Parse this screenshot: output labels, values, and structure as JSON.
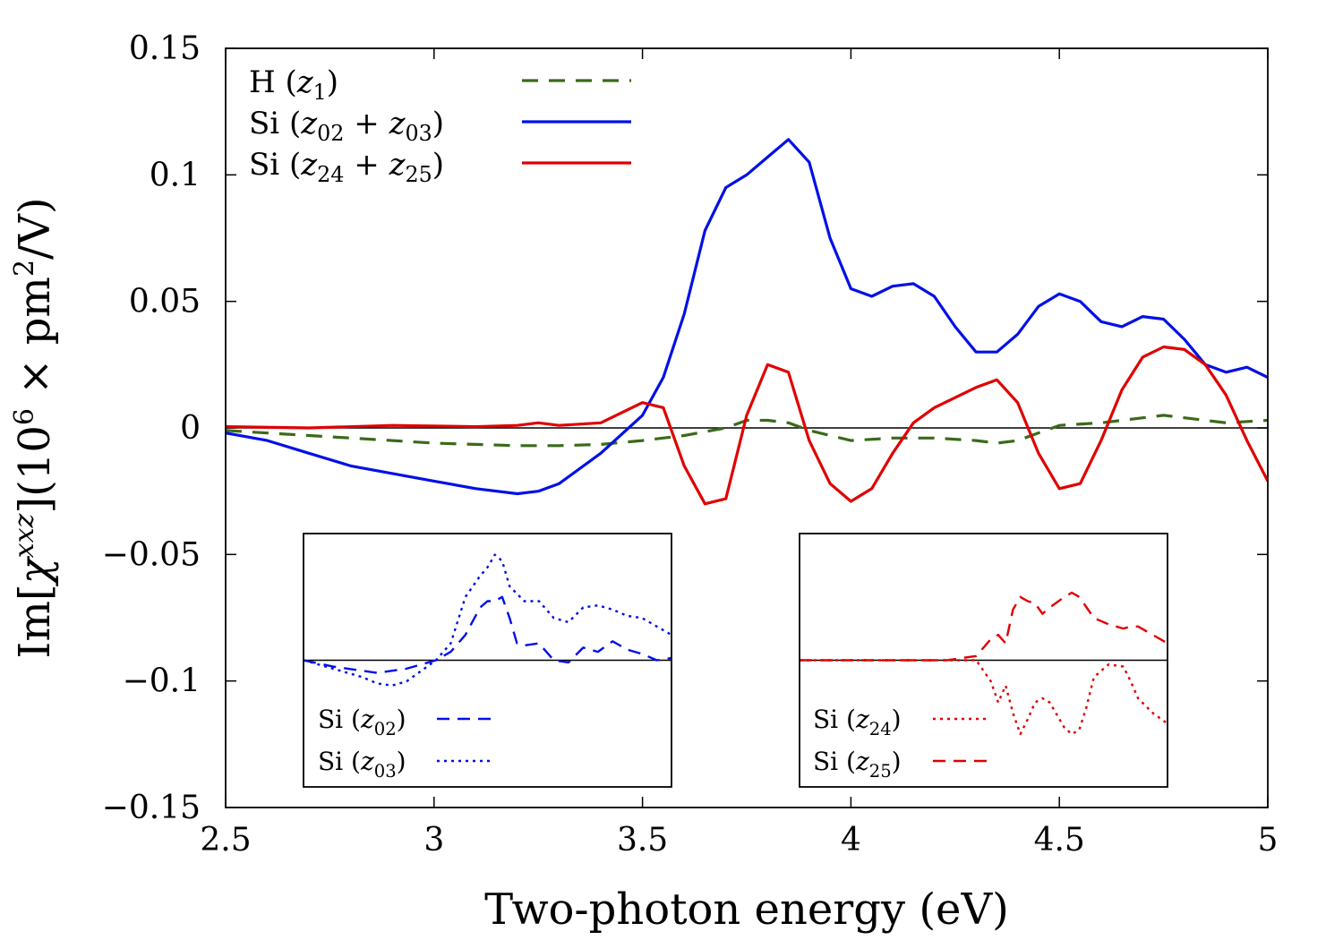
{
  "chart_data": [
    {
      "id": "main",
      "type": "line",
      "xlabel": "Two-photon energy (eV)",
      "ylabel": "Im[χ^xxz](10^6 × pm^2/V)",
      "ylabel_parts": {
        "lead": "Im[",
        "chi": "χ",
        "sup": "xxz",
        "mid": "](10",
        "six": "6",
        "times": " × pm",
        "two": "2",
        "tail": "/V)"
      },
      "xlim": [
        2.5,
        5
      ],
      "ylim": [
        -0.15,
        0.15
      ],
      "xticks": [
        2.5,
        3,
        3.5,
        4,
        4.5,
        5
      ],
      "xtick_labels": [
        "2.5",
        "3",
        "3.5",
        "4",
        "4.5",
        "5"
      ],
      "yticks": [
        -0.15,
        -0.1,
        -0.05,
        0,
        0.05,
        0.1,
        0.15
      ],
      "ytick_labels": [
        "−0.15",
        "−0.1",
        "−0.05",
        "0",
        "0.05",
        "0.1",
        "0.15"
      ],
      "legend_position": "top-left",
      "zero_line": true,
      "series": [
        {
          "key": "h",
          "legend": {
            "prefix": "H (",
            "sym": "z",
            "sub1": "1",
            "suffix": ")"
          },
          "color": "#3a6a1a",
          "style": "dashed",
          "x": [
            2.5,
            2.6,
            2.7,
            2.8,
            2.9,
            3.0,
            3.1,
            3.2,
            3.3,
            3.4,
            3.5,
            3.6,
            3.7,
            3.75,
            3.8,
            3.85,
            3.9,
            4.0,
            4.1,
            4.2,
            4.3,
            4.35,
            4.4,
            4.5,
            4.6,
            4.7,
            4.75,
            4.8,
            4.9,
            5.0
          ],
          "y": [
            -0.001,
            -0.002,
            -0.003,
            -0.004,
            -0.005,
            -0.006,
            -0.0065,
            -0.007,
            -0.007,
            -0.0065,
            -0.005,
            -0.003,
            0.0,
            0.003,
            0.003,
            0.002,
            -0.001,
            -0.005,
            -0.004,
            -0.004,
            -0.005,
            -0.006,
            -0.005,
            0.001,
            0.002,
            0.004,
            0.005,
            0.004,
            0.002,
            0.003
          ]
        },
        {
          "key": "si_sum_low",
          "legend": {
            "prefix": "Si (",
            "sym": "z",
            "sub1": "02",
            "plus": " + ",
            "sym2": "z",
            "sub2": "03",
            "suffix": ")"
          },
          "color": "#0010e6",
          "style": "solid",
          "x": [
            2.5,
            2.6,
            2.7,
            2.8,
            2.9,
            3.0,
            3.1,
            3.2,
            3.25,
            3.3,
            3.4,
            3.5,
            3.55,
            3.6,
            3.65,
            3.7,
            3.75,
            3.8,
            3.85,
            3.9,
            3.95,
            4.0,
            4.05,
            4.1,
            4.15,
            4.2,
            4.25,
            4.3,
            4.35,
            4.4,
            4.45,
            4.5,
            4.55,
            4.6,
            4.65,
            4.7,
            4.75,
            4.8,
            4.85,
            4.9,
            4.95,
            5.0
          ],
          "y": [
            -0.002,
            -0.005,
            -0.01,
            -0.015,
            -0.018,
            -0.021,
            -0.024,
            -0.026,
            -0.025,
            -0.022,
            -0.01,
            0.005,
            0.02,
            0.045,
            0.078,
            0.095,
            0.1,
            0.107,
            0.114,
            0.105,
            0.075,
            0.055,
            0.052,
            0.056,
            0.057,
            0.052,
            0.04,
            0.03,
            0.03,
            0.037,
            0.048,
            0.053,
            0.05,
            0.042,
            0.04,
            0.044,
            0.043,
            0.035,
            0.025,
            0.022,
            0.024,
            0.02
          ]
        },
        {
          "key": "si_sum_deep",
          "legend": {
            "prefix": "Si (",
            "sym": "z",
            "sub1": "24",
            "plus": " + ",
            "sym2": "z",
            "sub2": "25",
            "suffix": ")"
          },
          "color": "#e00000",
          "style": "solid",
          "x": [
            2.5,
            2.7,
            2.9,
            3.1,
            3.2,
            3.25,
            3.3,
            3.4,
            3.5,
            3.55,
            3.6,
            3.65,
            3.7,
            3.75,
            3.8,
            3.85,
            3.9,
            3.95,
            4.0,
            4.05,
            4.1,
            4.15,
            4.2,
            4.3,
            4.35,
            4.4,
            4.45,
            4.5,
            4.55,
            4.6,
            4.65,
            4.7,
            4.75,
            4.8,
            4.85,
            4.9,
            4.95,
            5.0
          ],
          "y": [
            0.0005,
            0.0,
            0.001,
            0.0005,
            0.001,
            0.002,
            0.001,
            0.002,
            0.01,
            0.008,
            -0.015,
            -0.03,
            -0.028,
            0.005,
            0.025,
            0.022,
            -0.005,
            -0.022,
            -0.029,
            -0.024,
            -0.01,
            0.002,
            0.008,
            0.016,
            0.019,
            0.01,
            -0.01,
            -0.024,
            -0.022,
            -0.005,
            0.015,
            0.028,
            0.032,
            0.031,
            0.025,
            0.013,
            -0.005,
            -0.021
          ]
        }
      ]
    },
    {
      "id": "inset_left",
      "type": "line",
      "xlim": [
        2.5,
        5
      ],
      "ylim": [
        -0.06,
        0.06
      ],
      "zero_line": true,
      "legend_position": "bottom-left",
      "series": [
        {
          "key": "si02",
          "legend": {
            "prefix": "Si (",
            "sym": "z",
            "sub1": "02",
            "suffix": ")"
          },
          "color": "#0010e6",
          "style": "dashed",
          "x": [
            2.5,
            2.7,
            2.9,
            3.0,
            3.1,
            3.2,
            3.3,
            3.4,
            3.5,
            3.6,
            3.7,
            3.75,
            3.8,
            3.85,
            3.9,
            3.95,
            4.0,
            4.1,
            4.2,
            4.3,
            4.4,
            4.5,
            4.6,
            4.7,
            4.8,
            4.9,
            5.0
          ],
          "y": [
            0.0,
            -0.003,
            -0.005,
            -0.006,
            -0.005,
            -0.004,
            -0.002,
            0.0,
            0.004,
            0.012,
            0.025,
            0.028,
            0.028,
            0.03,
            0.02,
            0.008,
            0.007,
            0.008,
            0.0,
            -0.001,
            0.006,
            0.004,
            0.009,
            0.005,
            0.003,
            0.0,
            0.001
          ]
        },
        {
          "key": "si03",
          "legend": {
            "prefix": "Si (",
            "sym": "z",
            "sub1": "03",
            "suffix": ")"
          },
          "color": "#0010e6",
          "style": "dotted",
          "x": [
            2.5,
            2.7,
            2.9,
            3.0,
            3.1,
            3.2,
            3.3,
            3.4,
            3.5,
            3.6,
            3.7,
            3.75,
            3.8,
            3.85,
            3.9,
            4.0,
            4.1,
            4.2,
            4.3,
            4.4,
            4.5,
            4.6,
            4.7,
            4.8,
            4.9,
            5.0
          ],
          "y": [
            0.0,
            -0.004,
            -0.008,
            -0.011,
            -0.012,
            -0.01,
            -0.005,
            0.0,
            0.008,
            0.03,
            0.04,
            0.044,
            0.05,
            0.047,
            0.035,
            0.028,
            0.028,
            0.02,
            0.018,
            0.025,
            0.026,
            0.024,
            0.021,
            0.02,
            0.016,
            0.012
          ]
        }
      ]
    },
    {
      "id": "inset_right",
      "type": "line",
      "xlim": [
        2.5,
        5
      ],
      "ylim": [
        -0.06,
        0.06
      ],
      "zero_line": true,
      "legend_position": "bottom-left",
      "series": [
        {
          "key": "si24",
          "legend": {
            "prefix": "Si (",
            "sym": "z",
            "sub1": "24",
            "suffix": ")"
          },
          "color": "#e00000",
          "style": "dotted",
          "x": [
            2.5,
            3.0,
            3.5,
            3.7,
            3.8,
            3.85,
            3.9,
            3.95,
            4.0,
            4.05,
            4.1,
            4.15,
            4.2,
            4.3,
            4.35,
            4.4,
            4.45,
            4.5,
            4.6,
            4.7,
            4.75,
            4.8,
            4.9,
            5.0
          ],
          "y": [
            0.0,
            0.0,
            0.0,
            0.0,
            -0.01,
            -0.02,
            -0.012,
            -0.025,
            -0.035,
            -0.028,
            -0.02,
            -0.018,
            -0.02,
            -0.032,
            -0.035,
            -0.033,
            -0.022,
            -0.008,
            -0.002,
            -0.003,
            -0.01,
            -0.018,
            -0.025,
            -0.03
          ]
        },
        {
          "key": "si25",
          "legend": {
            "prefix": "Si (",
            "sym": "z",
            "sub1": "25",
            "suffix": ")"
          },
          "color": "#e00000",
          "style": "dashed",
          "x": [
            2.5,
            3.0,
            3.5,
            3.7,
            3.8,
            3.85,
            3.9,
            3.95,
            4.0,
            4.05,
            4.1,
            4.15,
            4.2,
            4.3,
            4.35,
            4.4,
            4.45,
            4.5,
            4.6,
            4.7,
            4.75,
            4.8,
            4.9,
            5.0
          ],
          "y": [
            0.0,
            0.0,
            0.0,
            0.002,
            0.01,
            0.012,
            0.008,
            0.024,
            0.03,
            0.028,
            0.027,
            0.022,
            0.025,
            0.03,
            0.032,
            0.03,
            0.025,
            0.02,
            0.017,
            0.015,
            0.016,
            0.016,
            0.012,
            0.008
          ]
        }
      ]
    }
  ]
}
